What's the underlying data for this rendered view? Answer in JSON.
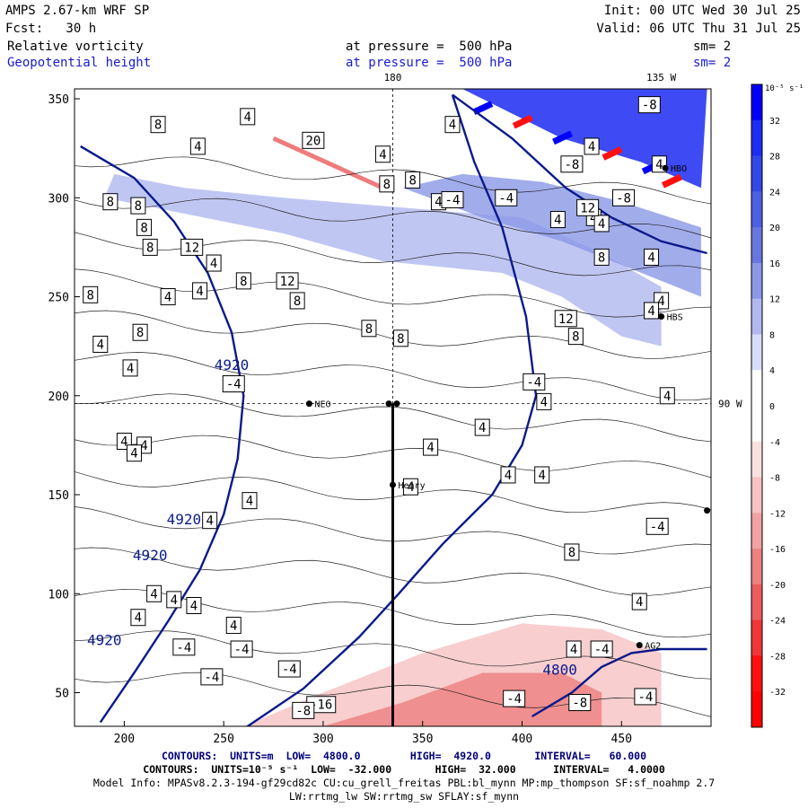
{
  "header": {
    "model": "AMPS 2.67-km WRF SP",
    "forecast": "Fcst:   30 h",
    "init": "Init: 00 UTC Wed 30 Jul 25",
    "valid": "Valid: 06 UTC Thu 31 Jul 25",
    "field1": "Relative vorticity",
    "field2": "Geopotential height",
    "level1": "at pressure =  500 hPa",
    "level2": "at pressure =  500 hPa",
    "smooth1": "sm= 2",
    "smooth2": "sm= 2"
  },
  "footer": {
    "line1": "CONTOURS:  UNITS=m  LOW=  4800.0        HIGH=  4920.0       INTERVAL=   60.000",
    "line2": "CONTOURS:  UNITS=10⁻⁵ s⁻¹  LOW=  -32.000       HIGH=  32.000      INTERVAL=   4.0000",
    "line3": "Model Info: MPASv8.2.3-194-gf29cd82c CU:cu_grell_freitas PBL:bl_mynn MP:mp_thompson SF:sf_noahmp 2.7",
    "line4": "LW:rrtmg_lw SW:rrtmg_sw SFLAY:sf_mynn"
  },
  "chart_data": {
    "type": "heatmap",
    "xlim": [
      175,
      495
    ],
    "ylim": [
      33,
      355
    ],
    "xticks": [
      200,
      250,
      300,
      350,
      400,
      450
    ],
    "yticks": [
      50,
      100,
      150,
      200,
      250,
      300,
      350
    ],
    "meridian_labels": [
      {
        "text": "180",
        "x": 335,
        "edge": "top"
      },
      {
        "text": "135 W",
        "x": 470,
        "edge": "top"
      },
      {
        "text": "90 W",
        "y": 196,
        "edge": "right"
      }
    ],
    "crosshair": {
      "x": 335,
      "y": 196
    },
    "colorbar": {
      "units_label": "10⁻⁵ s⁻¹",
      "levels": [
        32,
        28,
        24,
        20,
        16,
        12,
        8,
        4,
        0,
        -4,
        -8,
        -12,
        -16,
        -20,
        -24,
        -28,
        -32
      ],
      "colors_top_to_bottom": [
        "#0000ff",
        "#1c2cf2",
        "#3346e8",
        "#4d5fe2",
        "#6877e0",
        "#8a97e6",
        "#b0b8ef",
        "#d8dcf8",
        "#ffffff",
        "#ffffff",
        "#fbe0e0",
        "#f6c2c2",
        "#f2a2a2",
        "#ee8080",
        "#ec5c5c",
        "#f03636",
        "#ff1010",
        "#ff0000"
      ]
    },
    "height_contours": [
      {
        "value": 4920,
        "label": "4920",
        "points": [
          [
            178,
            326
          ],
          [
            205,
            310
          ],
          [
            225,
            288
          ],
          [
            242,
            262
          ],
          [
            254,
            232
          ],
          [
            260,
            200
          ],
          [
            257,
            168
          ],
          [
            250,
            140
          ],
          [
            238,
            112
          ],
          [
            222,
            86
          ],
          [
            205,
            60
          ],
          [
            188,
            35
          ]
        ]
      },
      {
        "value": 4860,
        "label": "",
        "points": [
          [
            365,
            352
          ],
          [
            395,
            330
          ],
          [
            422,
            305
          ],
          [
            445,
            290
          ],
          [
            470,
            278
          ],
          [
            493,
            272
          ]
        ]
      },
      {
        "value": 4860,
        "label": "",
        "points": [
          [
            262,
            33
          ],
          [
            290,
            52
          ],
          [
            318,
            78
          ],
          [
            338,
            100
          ],
          [
            360,
            125
          ],
          [
            385,
            150
          ],
          [
            400,
            175
          ],
          [
            407,
            200
          ],
          [
            402,
            240
          ],
          [
            390,
            285
          ],
          [
            376,
            318
          ],
          [
            365,
            352
          ]
        ]
      },
      {
        "value": 4800,
        "label": "4800",
        "points": [
          [
            405,
            38
          ],
          [
            425,
            50
          ],
          [
            440,
            63
          ],
          [
            455,
            70
          ],
          [
            470,
            72
          ],
          [
            493,
            72
          ]
        ]
      }
    ],
    "contour_labels_height": [
      {
        "text": "4920",
        "x": 254,
        "y": 213
      },
      {
        "text": "4920",
        "x": 230,
        "y": 135
      },
      {
        "text": "4920",
        "x": 213,
        "y": 117
      },
      {
        "text": "4920",
        "x": 190,
        "y": 74
      },
      {
        "text": "4800",
        "x": 419,
        "y": 59
      }
    ],
    "vorticity_labels": [
      {
        "text": "8",
        "x": 217,
        "y": 337
      },
      {
        "text": "4",
        "x": 237,
        "y": 326
      },
      {
        "text": "4",
        "x": 262,
        "y": 341
      },
      {
        "text": "20",
        "x": 295,
        "y": 329
      },
      {
        "text": "4",
        "x": 330,
        "y": 322
      },
      {
        "text": "8",
        "x": 332,
        "y": 307
      },
      {
        "text": "4",
        "x": 365,
        "y": 337
      },
      {
        "text": "8",
        "x": 345,
        "y": 309
      },
      {
        "text": "4",
        "x": 358,
        "y": 298
      },
      {
        "text": "8",
        "x": 193,
        "y": 298
      },
      {
        "text": "8",
        "x": 207,
        "y": 296
      },
      {
        "text": "8",
        "x": 210,
        "y": 285
      },
      {
        "text": "8",
        "x": 213,
        "y": 275
      },
      {
        "text": "12",
        "x": 234,
        "y": 275
      },
      {
        "text": "4",
        "x": 245,
        "y": 267
      },
      {
        "text": "8",
        "x": 260,
        "y": 258
      },
      {
        "text": "12",
        "x": 282,
        "y": 258
      },
      {
        "text": "8",
        "x": 287,
        "y": 248
      },
      {
        "text": "4",
        "x": 222,
        "y": 250
      },
      {
        "text": "4",
        "x": 238,
        "y": 253
      },
      {
        "text": "8",
        "x": 183,
        "y": 251
      },
      {
        "text": "8",
        "x": 208,
        "y": 232
      },
      {
        "text": "4",
        "x": 188,
        "y": 226
      },
      {
        "text": "8",
        "x": 323,
        "y": 234
      },
      {
        "text": "8",
        "x": 339,
        "y": 229
      },
      {
        "text": "4",
        "x": 203,
        "y": 214
      },
      {
        "text": "-4",
        "x": 255,
        "y": 206
      },
      {
        "text": "4",
        "x": 200,
        "y": 177
      },
      {
        "text": "4",
        "x": 210,
        "y": 175
      },
      {
        "text": "4",
        "x": 205,
        "y": 171
      },
      {
        "text": "-4",
        "x": 406,
        "y": 207
      },
      {
        "text": "4",
        "x": 411,
        "y": 197
      },
      {
        "text": "4",
        "x": 380,
        "y": 184
      },
      {
        "text": "4",
        "x": 354,
        "y": 174
      },
      {
        "text": "4",
        "x": 393,
        "y": 160
      },
      {
        "text": "4",
        "x": 410,
        "y": 160
      },
      {
        "text": "4",
        "x": 344,
        "y": 154
      },
      {
        "text": "4",
        "x": 263,
        "y": 147
      },
      {
        "text": "4",
        "x": 243,
        "y": 137
      },
      {
        "text": "8",
        "x": 425,
        "y": 121
      },
      {
        "text": "-4",
        "x": 468,
        "y": 134
      },
      {
        "text": "4",
        "x": 215,
        "y": 100
      },
      {
        "text": "4",
        "x": 225,
        "y": 97
      },
      {
        "text": "4",
        "x": 235,
        "y": 94
      },
      {
        "text": "4",
        "x": 255,
        "y": 84
      },
      {
        "text": "4",
        "x": 207,
        "y": 88
      },
      {
        "text": "-4",
        "x": 230,
        "y": 73
      },
      {
        "text": "-4",
        "x": 259,
        "y": 72
      },
      {
        "text": "-4",
        "x": 283,
        "y": 62
      },
      {
        "text": "-4",
        "x": 244,
        "y": 58
      },
      {
        "text": "-16",
        "x": 299,
        "y": 44
      },
      {
        "text": "-8",
        "x": 290,
        "y": 41
      },
      {
        "text": "-4",
        "x": 396,
        "y": 47
      },
      {
        "text": "-8",
        "x": 429,
        "y": 45
      },
      {
        "text": "-4",
        "x": 462,
        "y": 48
      },
      {
        "text": "-4",
        "x": 440,
        "y": 72
      },
      {
        "text": "4",
        "x": 426,
        "y": 72
      },
      {
        "text": "4",
        "x": 459,
        "y": 96
      },
      {
        "text": "4",
        "x": 436,
        "y": 290
      },
      {
        "text": "4",
        "x": 440,
        "y": 287
      },
      {
        "text": "8",
        "x": 440,
        "y": 270
      },
      {
        "text": "4",
        "x": 465,
        "y": 270
      },
      {
        "text": "4",
        "x": 470,
        "y": 248
      },
      {
        "text": "12",
        "x": 422,
        "y": 239
      },
      {
        "text": "8",
        "x": 427,
        "y": 230
      },
      {
        "text": "4",
        "x": 465,
        "y": 243
      },
      {
        "text": "4",
        "x": 473,
        "y": 200
      },
      {
        "text": "-8",
        "x": 425,
        "y": 317
      },
      {
        "text": "-4",
        "x": 365,
        "y": 299
      },
      {
        "text": "-8",
        "x": 451,
        "y": 300
      },
      {
        "text": "12",
        "x": 433,
        "y": 295
      },
      {
        "text": "-4",
        "x": 392,
        "y": 300
      },
      {
        "text": "4",
        "x": 418,
        "y": 289
      },
      {
        "text": "-8",
        "x": 464,
        "y": 347
      },
      {
        "text": "4",
        "x": 469,
        "y": 317
      },
      {
        "text": "4",
        "x": 435,
        "y": 326
      }
    ],
    "stations": [
      {
        "name": "NEO",
        "x": 293,
        "y": 196
      },
      {
        "name": "Henry",
        "x": 335,
        "y": 155
      },
      {
        "name": "HBS",
        "x": 470,
        "y": 240
      },
      {
        "name": "HBO",
        "x": 472,
        "y": 315
      },
      {
        "name": "AG2",
        "x": 459,
        "y": 74
      },
      {
        "name": "",
        "x": 333,
        "y": 196
      },
      {
        "name": "",
        "x": 337,
        "y": 196
      },
      {
        "name": "",
        "x": 493,
        "y": 142
      }
    ],
    "section_line": [
      [
        335,
        33
      ],
      [
        335,
        196
      ]
    ]
  }
}
